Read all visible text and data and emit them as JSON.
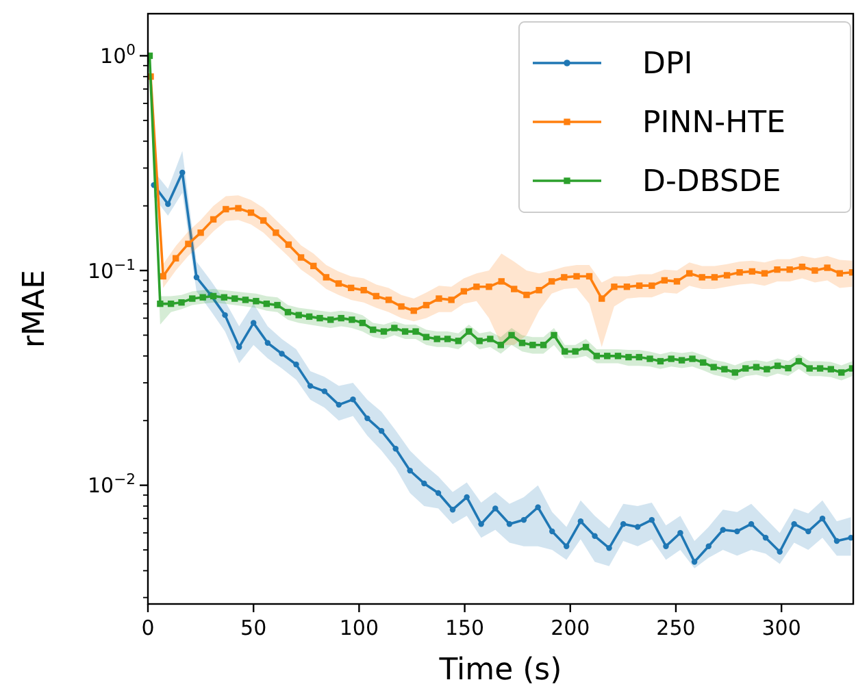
{
  "chart_data": {
    "type": "line",
    "xlabel": "Time (s)",
    "ylabel": "rMAE",
    "log": "y",
    "legend": "top right",
    "line_style": "solid",
    "xlim": [
      0,
      334
    ],
    "xticks": [
      0,
      50,
      100,
      150,
      200,
      250,
      300
    ],
    "ylim": [
      0.0028,
      1.57
    ],
    "yticks": [
      {
        "value": 0.003,
        "label": null
      },
      {
        "value": 0.004,
        "label": null
      },
      {
        "value": 0.005,
        "label": null
      },
      {
        "value": 0.006,
        "label": null
      },
      {
        "value": 0.007,
        "label": null
      },
      {
        "value": 0.008,
        "label": null
      },
      {
        "value": 0.009,
        "label": null
      },
      {
        "value": 0.01,
        "label": "10$^{−2}$"
      },
      {
        "value": 0.02,
        "label": null
      },
      {
        "value": 0.03,
        "label": null
      },
      {
        "value": 0.04,
        "label": null
      },
      {
        "value": 0.05,
        "label": null
      },
      {
        "value": 0.06,
        "label": null
      },
      {
        "value": 0.07,
        "label": null
      },
      {
        "value": 0.08,
        "label": null
      },
      {
        "value": 0.09,
        "label": null
      },
      {
        "value": 0.1,
        "label": "10$^{−1}$"
      },
      {
        "value": 0.2,
        "label": null
      },
      {
        "value": 0.3,
        "label": null
      },
      {
        "value": 0.4,
        "label": null
      },
      {
        "value": 0.5,
        "label": null
      },
      {
        "value": 0.6,
        "label": null
      },
      {
        "value": 0.7,
        "label": null
      },
      {
        "value": 0.8,
        "label": null
      },
      {
        "value": 0.9,
        "label": null
      },
      {
        "value": 1,
        "label": "10$^{0}$"
      }
    ],
    "series": [
      {
        "name": "DPI",
        "color": "#1f77b4",
        "marker": "circle",
        "x": [
          2.8,
          9.5,
          16.3,
          23.0,
          29.7,
          36.5,
          43.2,
          50.0,
          56.7,
          63.4,
          70.2,
          76.9,
          83.6,
          90.4,
          97.1,
          103.9,
          110.6,
          117.3,
          124.1,
          130.8,
          137.5,
          144.3,
          151.0,
          157.8,
          164.5,
          171.2,
          178.0,
          184.7,
          191.4,
          198.2,
          204.9,
          211.6,
          218.4,
          225.1,
          231.9,
          238.6,
          245.3,
          252.1,
          258.8,
          265.5,
          272.3,
          279.0,
          285.7,
          292.5,
          299.2,
          306.0,
          312.7,
          319.4,
          326.2,
          332.9
        ],
        "values": [
          0.25,
          0.204,
          0.286,
          0.093,
          0.077,
          0.062,
          0.044,
          0.057,
          0.046,
          0.041,
          0.0365,
          0.029,
          0.0274,
          0.0237,
          0.0251,
          0.0205,
          0.0179,
          0.0148,
          0.0117,
          0.0102,
          0.0092,
          0.0077,
          0.0088,
          0.0066,
          0.0078,
          0.0066,
          0.0069,
          0.0079,
          0.0061,
          0.0052,
          0.0068,
          0.0058,
          0.0051,
          0.0066,
          0.0064,
          0.0069,
          0.0052,
          0.006,
          0.0044,
          0.0052,
          0.0062,
          0.0061,
          0.0066,
          0.0057,
          0.0049,
          0.0066,
          0.0061,
          0.007,
          0.0055,
          0.0057
        ],
        "lower": [
          0.22,
          0.18,
          0.23,
          0.08,
          0.065,
          0.052,
          0.037,
          0.045,
          0.039,
          0.035,
          0.031,
          0.025,
          0.023,
          0.02,
          0.021,
          0.017,
          0.0145,
          0.012,
          0.0092,
          0.008,
          0.0078,
          0.0066,
          0.0072,
          0.0057,
          0.0062,
          0.0054,
          0.0052,
          0.0052,
          0.005,
          0.0045,
          0.0056,
          0.0044,
          0.0042,
          0.0055,
          0.0052,
          0.0056,
          0.0045,
          0.005,
          0.0041,
          0.0046,
          0.005,
          0.0047,
          0.005,
          0.0048,
          0.0043,
          0.0054,
          0.005,
          0.0057,
          0.0047,
          0.0047
        ],
        "upper": [
          0.29,
          0.24,
          0.36,
          0.11,
          0.09,
          0.072,
          0.055,
          0.07,
          0.055,
          0.048,
          0.043,
          0.034,
          0.032,
          0.029,
          0.03,
          0.025,
          0.022,
          0.018,
          0.0145,
          0.0125,
          0.011,
          0.0093,
          0.0103,
          0.0083,
          0.0093,
          0.0082,
          0.0088,
          0.01,
          0.0075,
          0.0064,
          0.0085,
          0.0072,
          0.0063,
          0.0082,
          0.008,
          0.0083,
          0.0065,
          0.0072,
          0.0055,
          0.0064,
          0.0077,
          0.0075,
          0.0082,
          0.007,
          0.006,
          0.0078,
          0.0074,
          0.0085,
          0.0068,
          0.0071
        ]
      },
      {
        "name": "PINN-HTE",
        "color": "#ff7f0e",
        "marker": "square",
        "x": [
          1.3,
          7.2,
          13.2,
          19.1,
          25.0,
          31.0,
          36.9,
          42.8,
          48.8,
          54.7,
          60.6,
          66.6,
          72.5,
          78.4,
          84.4,
          90.3,
          96.2,
          102.2,
          108.1,
          114.0,
          120.0,
          125.9,
          131.8,
          137.8,
          143.7,
          149.6,
          155.6,
          161.5,
          167.4,
          173.4,
          179.3,
          185.2,
          191.2,
          197.1,
          203.0,
          209.0,
          214.9,
          220.8,
          226.8,
          232.7,
          238.6,
          244.6,
          250.5,
          256.4,
          262.4,
          268.3,
          274.2,
          280.2,
          286.1,
          292.0,
          298.0,
          303.9,
          309.8,
          315.8,
          321.7,
          327.6,
          333.5
        ],
        "values": [
          0.8,
          0.094,
          0.114,
          0.133,
          0.15,
          0.173,
          0.193,
          0.195,
          0.186,
          0.171,
          0.15,
          0.132,
          0.115,
          0.105,
          0.093,
          0.087,
          0.083,
          0.081,
          0.076,
          0.073,
          0.068,
          0.065,
          0.069,
          0.074,
          0.073,
          0.08,
          0.084,
          0.084,
          0.089,
          0.082,
          0.077,
          0.081,
          0.089,
          0.093,
          0.094,
          0.094,
          0.074,
          0.084,
          0.084,
          0.085,
          0.085,
          0.09,
          0.089,
          0.097,
          0.093,
          0.093,
          0.095,
          0.098,
          0.099,
          0.097,
          0.101,
          0.101,
          0.104,
          0.1,
          0.103,
          0.097,
          0.098
        ],
        "lower": [
          0.72,
          0.083,
          0.1,
          0.117,
          0.132,
          0.152,
          0.17,
          0.172,
          0.164,
          0.15,
          0.132,
          0.116,
          0.101,
          0.092,
          0.082,
          0.077,
          0.073,
          0.071,
          0.067,
          0.064,
          0.06,
          0.058,
          0.06,
          0.064,
          0.064,
          0.07,
          0.072,
          0.06,
          0.045,
          0.045,
          0.05,
          0.065,
          0.078,
          0.082,
          0.083,
          0.07,
          0.044,
          0.068,
          0.074,
          0.075,
          0.075,
          0.079,
          0.078,
          0.085,
          0.082,
          0.082,
          0.084,
          0.086,
          0.087,
          0.085,
          0.089,
          0.089,
          0.092,
          0.088,
          0.09,
          0.083,
          0.084
        ],
        "upper": [
          0.9,
          0.107,
          0.13,
          0.152,
          0.172,
          0.2,
          0.222,
          0.224,
          0.213,
          0.196,
          0.172,
          0.151,
          0.131,
          0.12,
          0.106,
          0.099,
          0.094,
          0.092,
          0.086,
          0.083,
          0.077,
          0.074,
          0.079,
          0.085,
          0.084,
          0.092,
          0.097,
          0.1,
          0.12,
          0.11,
          0.1,
          0.097,
          0.1,
          0.104,
          0.106,
          0.106,
          0.088,
          0.094,
          0.094,
          0.096,
          0.096,
          0.101,
          0.1,
          0.109,
          0.105,
          0.105,
          0.107,
          0.11,
          0.111,
          0.109,
          0.113,
          0.113,
          0.117,
          0.114,
          0.117,
          0.112,
          0.111
        ]
      },
      {
        "name": "D-DBSDE",
        "color": "#2ca02c",
        "marker": "square",
        "x": [
          0.8,
          5.8,
          10.9,
          15.9,
          21.0,
          26.0,
          31.0,
          36.1,
          41.1,
          46.2,
          51.2,
          56.2,
          61.3,
          66.3,
          71.4,
          76.4,
          81.4,
          86.5,
          91.5,
          96.6,
          101.6,
          106.6,
          111.7,
          116.7,
          121.8,
          126.8,
          131.8,
          136.9,
          141.9,
          147.0,
          152.0,
          157.0,
          162.1,
          167.1,
          172.2,
          177.2,
          182.2,
          187.3,
          192.3,
          197.4,
          202.4,
          207.4,
          212.5,
          217.5,
          222.6,
          227.6,
          232.6,
          237.7,
          242.7,
          247.8,
          252.8,
          257.8,
          262.9,
          267.9,
          273.0,
          278.0,
          283.0,
          288.1,
          293.1,
          298.2,
          303.2,
          308.2,
          313.3,
          318.3,
          323.4,
          328.4,
          333.5
        ],
        "values": [
          1.0,
          0.07,
          0.07,
          0.071,
          0.074,
          0.075,
          0.076,
          0.075,
          0.074,
          0.073,
          0.072,
          0.07,
          0.069,
          0.064,
          0.062,
          0.061,
          0.06,
          0.059,
          0.06,
          0.059,
          0.057,
          0.053,
          0.052,
          0.054,
          0.052,
          0.052,
          0.049,
          0.048,
          0.048,
          0.047,
          0.052,
          0.047,
          0.048,
          0.045,
          0.05,
          0.046,
          0.045,
          0.045,
          0.05,
          0.042,
          0.042,
          0.044,
          0.04,
          0.04,
          0.04,
          0.0395,
          0.0395,
          0.0388,
          0.0378,
          0.0388,
          0.0382,
          0.0388,
          0.0373,
          0.0355,
          0.0347,
          0.0335,
          0.035,
          0.0355,
          0.0347,
          0.036,
          0.0351,
          0.0378,
          0.035,
          0.035,
          0.0347,
          0.0335,
          0.035
        ],
        "lower": [
          0.9,
          0.056,
          0.064,
          0.066,
          0.069,
          0.07,
          0.071,
          0.07,
          0.069,
          0.068,
          0.067,
          0.065,
          0.064,
          0.059,
          0.057,
          0.056,
          0.055,
          0.054,
          0.055,
          0.054,
          0.052,
          0.049,
          0.048,
          0.05,
          0.048,
          0.048,
          0.045,
          0.044,
          0.044,
          0.043,
          0.047,
          0.043,
          0.044,
          0.041,
          0.045,
          0.042,
          0.041,
          0.041,
          0.045,
          0.039,
          0.039,
          0.04,
          0.037,
          0.037,
          0.037,
          0.036,
          0.036,
          0.0357,
          0.0348,
          0.0357,
          0.0351,
          0.0357,
          0.0343,
          0.0327,
          0.0319,
          0.0308,
          0.0322,
          0.0327,
          0.0319,
          0.0331,
          0.0323,
          0.0348,
          0.0322,
          0.0322,
          0.0319,
          0.0308,
          0.0322
        ],
        "upper": [
          1.08,
          0.076,
          0.076,
          0.077,
          0.08,
          0.081,
          0.082,
          0.081,
          0.08,
          0.079,
          0.078,
          0.076,
          0.075,
          0.069,
          0.067,
          0.066,
          0.065,
          0.064,
          0.065,
          0.064,
          0.062,
          0.057,
          0.056,
          0.058,
          0.056,
          0.056,
          0.053,
          0.052,
          0.052,
          0.051,
          0.056,
          0.051,
          0.052,
          0.049,
          0.054,
          0.05,
          0.049,
          0.049,
          0.054,
          0.045,
          0.045,
          0.048,
          0.043,
          0.043,
          0.043,
          0.0427,
          0.0427,
          0.0419,
          0.0408,
          0.0419,
          0.0413,
          0.0419,
          0.0403,
          0.0383,
          0.0375,
          0.0362,
          0.0378,
          0.0383,
          0.0375,
          0.0389,
          0.0379,
          0.0408,
          0.0378,
          0.0378,
          0.0375,
          0.0362,
          0.0378
        ]
      }
    ]
  }
}
